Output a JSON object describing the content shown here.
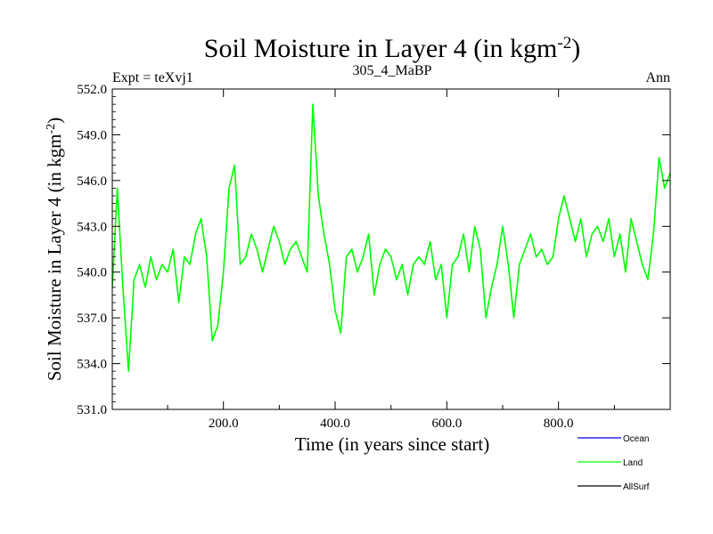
{
  "chart_data": {
    "type": "line",
    "title": "Soil Moisture in Layer 4 (in kgm",
    "title_sup": "-2",
    "title_close": ")",
    "subtitle_left": "Expt = teXvj1",
    "subtitle_center": "305_4_MaBP",
    "subtitle_right": "Ann",
    "xlabel": "Time (in years since start)",
    "ylabel": "Soil Moisture in Layer 4 (in kgm",
    "ylabel_sup": "-2",
    "ylabel_close": ")",
    "xlim": [
      1,
      1000
    ],
    "ylim": [
      531.0,
      552.0
    ],
    "xticks": [
      {
        "value": 200,
        "label": "200.0"
      },
      {
        "value": 400,
        "label": "400.0"
      },
      {
        "value": 600,
        "label": "600.0"
      },
      {
        "value": 800,
        "label": "800.0"
      }
    ],
    "yticks": [
      {
        "value": 531,
        "label": "531.0"
      },
      {
        "value": 534,
        "label": "534.0"
      },
      {
        "value": 537,
        "label": "537.0"
      },
      {
        "value": 540,
        "label": "540.0"
      },
      {
        "value": 543,
        "label": "543.0"
      },
      {
        "value": 546,
        "label": "546.0"
      },
      {
        "value": 549,
        "label": "549.0"
      },
      {
        "value": 552,
        "label": "552.0"
      }
    ],
    "legend_position": "bottom-right",
    "legend": [
      {
        "name": "Ocean",
        "color": "#0000ff"
      },
      {
        "name": "Land",
        "color": "#00ff00"
      },
      {
        "name": "AllSurf",
        "color": "#000000"
      }
    ],
    "series": [
      {
        "name": "Land",
        "color": "#00ff00",
        "x": [
          1,
          10,
          20,
          30,
          40,
          50,
          60,
          70,
          80,
          90,
          100,
          110,
          120,
          130,
          140,
          150,
          160,
          170,
          180,
          190,
          200,
          210,
          220,
          230,
          240,
          250,
          260,
          270,
          280,
          290,
          300,
          310,
          320,
          330,
          340,
          350,
          360,
          370,
          380,
          390,
          400,
          410,
          420,
          430,
          440,
          450,
          460,
          470,
          480,
          490,
          500,
          510,
          520,
          530,
          540,
          550,
          560,
          570,
          580,
          590,
          600,
          610,
          620,
          630,
          640,
          650,
          660,
          670,
          680,
          690,
          700,
          710,
          720,
          730,
          740,
          750,
          760,
          770,
          780,
          790,
          800,
          810,
          820,
          830,
          840,
          850,
          860,
          870,
          880,
          890,
          900,
          910,
          920,
          930,
          940,
          950,
          960,
          970,
          980,
          990,
          1000
        ],
        "values": [
          539.0,
          545.5,
          539.0,
          533.5,
          539.5,
          540.5,
          539.0,
          541.0,
          539.5,
          540.5,
          540.0,
          541.5,
          538.0,
          541.0,
          540.5,
          542.5,
          543.5,
          541.0,
          535.5,
          536.5,
          540.0,
          545.5,
          547.0,
          540.5,
          541.0,
          542.5,
          541.5,
          540.0,
          541.5,
          543.0,
          542.0,
          540.5,
          541.5,
          542.0,
          541.0,
          540.0,
          551.0,
          545.0,
          542.5,
          540.5,
          537.5,
          536.0,
          541.0,
          541.5,
          540.0,
          541.0,
          542.5,
          538.5,
          540.5,
          541.5,
          541.0,
          539.5,
          540.5,
          538.5,
          540.5,
          541.0,
          540.5,
          542.0,
          539.5,
          540.5,
          537.0,
          540.5,
          541.0,
          542.5,
          540.0,
          543.0,
          541.5,
          537.0,
          539.0,
          540.5,
          543.0,
          540.5,
          537.0,
          540.5,
          541.5,
          542.5,
          541.0,
          541.5,
          540.5,
          541.0,
          543.5,
          545.0,
          543.5,
          542.0,
          543.5,
          541.0,
          542.5,
          543.0,
          542.0,
          543.5,
          541.0,
          542.5,
          540.0,
          543.5,
          542.0,
          540.5,
          539.5,
          542.5,
          547.5,
          545.5,
          546.5
        ]
      }
    ]
  }
}
